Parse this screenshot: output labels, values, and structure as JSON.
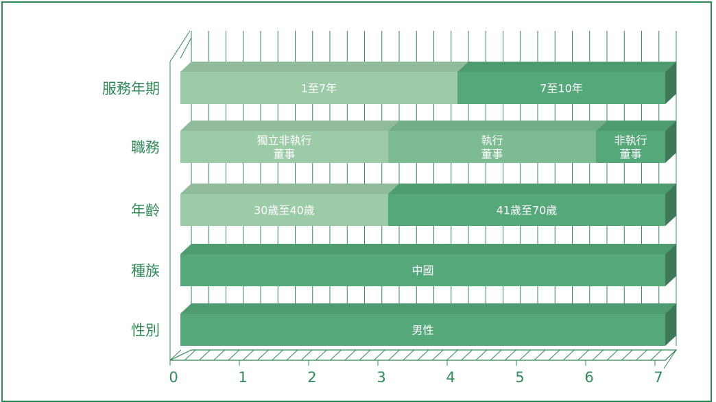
{
  "chart_data": {
    "type": "bar",
    "orientation": "horizontal",
    "stacked": true,
    "three_d": true,
    "xlim": [
      0,
      7
    ],
    "x_ticks": [
      "0",
      "1",
      "2",
      "3",
      "4",
      "5",
      "6",
      "7"
    ],
    "grid": true,
    "categories": [
      "服務年期",
      "職務",
      "年齡",
      "種族",
      "性別"
    ],
    "segments": [
      [
        {
          "label": "1至7年",
          "value": 4,
          "color": "#9ccba8"
        },
        {
          "label": "7至10年",
          "value": 3,
          "color": "#55a87a"
        }
      ],
      [
        {
          "label": "獨立非執行\n董事",
          "value": 3,
          "color": "#9ccba8"
        },
        {
          "label": "執行\n董事",
          "value": 3,
          "color": "#7dbc92"
        },
        {
          "label": "非執行\n董事",
          "value": 1,
          "color": "#55a87a"
        }
      ],
      [
        {
          "label": "30歲至40歲",
          "value": 3,
          "color": "#9ccba8"
        },
        {
          "label": "41歲至70歲",
          "value": 4,
          "color": "#55a87a"
        }
      ],
      [
        {
          "label": "中國",
          "value": 7,
          "color": "#55a87a"
        }
      ],
      [
        {
          "label": "男性",
          "value": 7,
          "color": "#55a87a"
        }
      ]
    ]
  },
  "colors": {
    "frame": "#2e8b57",
    "axis": "#2e8b57",
    "text": "#2e8b57"
  }
}
